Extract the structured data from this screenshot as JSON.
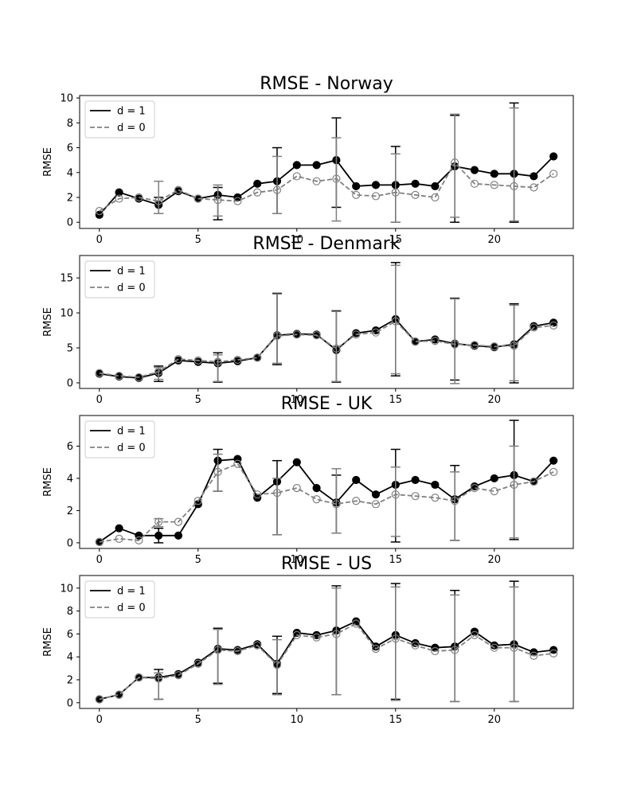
{
  "chart_data": [
    {
      "type": "line",
      "title": "RMSE - Norway",
      "xlabel": "",
      "ylabel": "RMSE",
      "xlim": [
        -1,
        24
      ],
      "ylim": [
        -0.5,
        10.2
      ],
      "xticks": [
        0,
        5,
        10,
        15,
        20
      ],
      "yticks": [
        0,
        2,
        4,
        6,
        8,
        10
      ],
      "legend": "top-left",
      "x": [
        0,
        1,
        2,
        3,
        4,
        5,
        6,
        7,
        8,
        9,
        10,
        11,
        12,
        13,
        14,
        15,
        16,
        17,
        18,
        19,
        20,
        21,
        22,
        23
      ],
      "series": [
        {
          "name": "d = 1",
          "color": "#000000",
          "linestyle": "solid",
          "marker": "filled-circle",
          "values": [
            0.6,
            2.4,
            1.9,
            1.4,
            2.5,
            1.9,
            2.2,
            2.0,
            3.1,
            3.3,
            4.6,
            4.6,
            5.0,
            2.9,
            3.0,
            3.0,
            3.1,
            2.9,
            4.5,
            4.2,
            3.9,
            3.9,
            3.7,
            5.3
          ],
          "errorbars": [
            {
              "x": 3,
              "low": 0.7,
              "high": 2.0
            },
            {
              "x": 6,
              "low": 0.2,
              "high": 2.8
            },
            {
              "x": 9,
              "low": 0.7,
              "high": 6.0
            },
            {
              "x": 12,
              "low": 1.2,
              "high": 8.4
            },
            {
              "x": 15,
              "low": 0.0,
              "high": 6.1
            },
            {
              "x": 18,
              "low": 0.0,
              "high": 8.6
            },
            {
              "x": 21,
              "low": 0.0,
              "high": 9.6
            }
          ]
        },
        {
          "name": "d = 0",
          "color": "#808080",
          "linestyle": "dashed",
          "marker": "open-circle",
          "values": [
            0.9,
            1.9,
            2.0,
            1.7,
            2.6,
            1.9,
            1.8,
            1.7,
            2.4,
            2.6,
            3.7,
            3.3,
            3.5,
            2.2,
            2.1,
            2.4,
            2.2,
            2.0,
            4.8,
            3.1,
            3.0,
            2.9,
            2.8,
            3.9
          ],
          "errorbars": [
            {
              "x": 3,
              "low": 0.7,
              "high": 3.3
            },
            {
              "x": 6,
              "low": 0.5,
              "high": 3.0
            },
            {
              "x": 9,
              "low": 0.7,
              "high": 5.3
            },
            {
              "x": 12,
              "low": 0.1,
              "high": 6.8
            },
            {
              "x": 15,
              "low": 0.0,
              "high": 5.5
            },
            {
              "x": 18,
              "low": 0.4,
              "high": 8.7
            },
            {
              "x": 21,
              "low": 0.1,
              "high": 9.2
            }
          ]
        }
      ]
    },
    {
      "type": "line",
      "title": "RMSE - Denmark",
      "xlabel": "",
      "ylabel": "RMSE",
      "xlim": [
        -1,
        24
      ],
      "ylim": [
        -0.8,
        18.2
      ],
      "xticks": [
        0,
        5,
        10,
        15,
        20
      ],
      "yticks": [
        0,
        5,
        10,
        15
      ],
      "legend": "top-left",
      "x": [
        0,
        1,
        2,
        3,
        4,
        5,
        6,
        7,
        8,
        9,
        10,
        11,
        12,
        13,
        14,
        15,
        16,
        17,
        18,
        19,
        20,
        21,
        22,
        23
      ],
      "series": [
        {
          "name": "d = 1",
          "color": "#000000",
          "linestyle": "solid",
          "marker": "filled-circle",
          "values": [
            1.3,
            0.9,
            0.7,
            1.4,
            3.2,
            3.0,
            2.8,
            3.1,
            3.6,
            6.8,
            7.0,
            6.9,
            4.7,
            7.1,
            7.5,
            9.1,
            5.9,
            6.2,
            5.6,
            5.3,
            5.1,
            5.5,
            8.1,
            8.6
          ],
          "errorbars": [
            {
              "x": 3,
              "low": 0.2,
              "high": 2.4
            },
            {
              "x": 6,
              "low": 0.1,
              "high": 4.3
            },
            {
              "x": 9,
              "low": 2.6,
              "high": 12.8
            },
            {
              "x": 12,
              "low": 0.1,
              "high": 10.3
            },
            {
              "x": 15,
              "low": 1.0,
              "high": 17.2
            },
            {
              "x": 18,
              "low": 0.4,
              "high": 12.1
            },
            {
              "x": 21,
              "low": 0.0,
              "high": 11.3
            }
          ]
        },
        {
          "name": "d = 0",
          "color": "#808080",
          "linestyle": "dashed",
          "marker": "open-circle",
          "values": [
            1.4,
            1.0,
            0.8,
            1.6,
            3.4,
            3.2,
            3.0,
            3.3,
            3.6,
            6.7,
            6.9,
            6.8,
            4.9,
            6.9,
            7.2,
            8.8,
            5.9,
            6.0,
            5.5,
            5.4,
            5.2,
            5.3,
            7.9,
            8.2
          ],
          "errorbars": [
            {
              "x": 3,
              "low": 0.5,
              "high": 2.2
            },
            {
              "x": 6,
              "low": 0.2,
              "high": 4.0
            },
            {
              "x": 9,
              "low": 2.8,
              "high": 12.7
            },
            {
              "x": 12,
              "low": 0.2,
              "high": 10.2
            },
            {
              "x": 15,
              "low": 1.3,
              "high": 16.8
            },
            {
              "x": 18,
              "low": -0.1,
              "high": 12.0
            },
            {
              "x": 21,
              "low": 0.3,
              "high": 11.1
            }
          ]
        }
      ]
    },
    {
      "type": "line",
      "title": "RMSE - UK",
      "xlabel": "",
      "ylabel": "RMSE",
      "xlim": [
        -1,
        24
      ],
      "ylim": [
        -0.35,
        7.9
      ],
      "xticks": [
        0,
        5,
        10,
        15,
        20
      ],
      "yticks": [
        0,
        2,
        4,
        6
      ],
      "legend": "top-left",
      "x": [
        0,
        1,
        2,
        3,
        4,
        5,
        6,
        7,
        8,
        9,
        10,
        11,
        12,
        13,
        14,
        15,
        16,
        17,
        18,
        19,
        20,
        21,
        22,
        23
      ],
      "series": [
        {
          "name": "d = 1",
          "color": "#000000",
          "linestyle": "solid",
          "marker": "filled-circle",
          "values": [
            0.05,
            0.9,
            0.45,
            0.45,
            0.45,
            2.4,
            5.1,
            5.2,
            2.8,
            3.8,
            5.0,
            3.4,
            2.5,
            3.9,
            3.0,
            3.6,
            3.9,
            3.6,
            2.7,
            3.5,
            4.0,
            4.2,
            3.8,
            5.1
          ],
          "errorbars": [
            {
              "x": 3,
              "low": 0.0,
              "high": 0.9
            },
            {
              "x": 6,
              "low": 3.2,
              "high": 5.8
            },
            {
              "x": 9,
              "low": 0.5,
              "high": 5.1
            },
            {
              "x": 12,
              "low": 0.6,
              "high": 4.2
            },
            {
              "x": 15,
              "low": 0.05,
              "high": 5.8
            },
            {
              "x": 18,
              "low": 0.15,
              "high": 4.8
            },
            {
              "x": 21,
              "low": 0.2,
              "high": 7.6
            }
          ]
        },
        {
          "name": "d = 0",
          "color": "#808080",
          "linestyle": "dashed",
          "marker": "open-circle",
          "values": [
            0.05,
            0.25,
            0.15,
            1.3,
            1.3,
            2.6,
            4.4,
            4.9,
            3.0,
            3.1,
            3.4,
            2.7,
            2.4,
            2.6,
            2.4,
            3.0,
            2.9,
            2.8,
            2.6,
            3.4,
            3.2,
            3.6,
            3.8,
            4.4
          ],
          "errorbars": [
            {
              "x": 3,
              "low": 1.0,
              "high": 1.5
            },
            {
              "x": 6,
              "low": 3.2,
              "high": 5.5
            },
            {
              "x": 9,
              "low": 0.5,
              "high": 4.0
            },
            {
              "x": 12,
              "low": 0.6,
              "high": 4.6
            },
            {
              "x": 15,
              "low": 0.4,
              "high": 4.7
            },
            {
              "x": 18,
              "low": 0.15,
              "high": 4.4
            },
            {
              "x": 21,
              "low": 0.3,
              "high": 6.0
            }
          ]
        }
      ]
    },
    {
      "type": "line",
      "title": "RMSE - US",
      "xlabel": "",
      "ylabel": "RMSE",
      "xlim": [
        -1,
        24
      ],
      "ylim": [
        -0.5,
        11.1
      ],
      "xticks": [
        0,
        5,
        10,
        15,
        20
      ],
      "yticks": [
        0,
        2,
        4,
        6,
        8,
        10
      ],
      "legend": "top-left",
      "x": [
        0,
        1,
        2,
        3,
        4,
        5,
        6,
        7,
        8,
        9,
        10,
        11,
        12,
        13,
        14,
        15,
        16,
        17,
        18,
        19,
        20,
        21,
        22,
        23
      ],
      "series": [
        {
          "name": "d = 1",
          "color": "#000000",
          "linestyle": "solid",
          "marker": "filled-circle",
          "values": [
            0.3,
            0.7,
            2.2,
            2.2,
            2.5,
            3.5,
            4.7,
            4.6,
            5.1,
            3.4,
            6.1,
            5.9,
            6.3,
            7.1,
            4.9,
            5.9,
            5.2,
            4.8,
            4.9,
            6.2,
            5.0,
            5.1,
            4.4,
            4.6
          ],
          "errorbars": [
            {
              "x": 3,
              "low": 0.3,
              "high": 2.9
            },
            {
              "x": 6,
              "low": 1.7,
              "high": 6.5
            },
            {
              "x": 9,
              "low": 0.8,
              "high": 5.8
            },
            {
              "x": 12,
              "low": 0.7,
              "high": 10.2
            },
            {
              "x": 15,
              "low": 0.3,
              "high": 10.4
            },
            {
              "x": 18,
              "low": 0.1,
              "high": 9.8
            },
            {
              "x": 21,
              "low": 0.1,
              "high": 10.6
            }
          ]
        },
        {
          "name": "d = 0",
          "color": "#808080",
          "linestyle": "dashed",
          "marker": "open-circle",
          "values": [
            0.3,
            0.7,
            2.2,
            2.1,
            2.4,
            3.4,
            4.6,
            4.5,
            5.0,
            3.3,
            5.9,
            5.7,
            6.0,
            6.9,
            4.7,
            5.6,
            5.0,
            4.5,
            4.6,
            5.9,
            4.8,
            4.8,
            4.1,
            4.3
          ],
          "errorbars": [
            {
              "x": 3,
              "low": 0.3,
              "high": 2.6
            },
            {
              "x": 6,
              "low": 1.6,
              "high": 6.4
            },
            {
              "x": 9,
              "low": 0.7,
              "high": 5.5
            },
            {
              "x": 12,
              "low": 0.7,
              "high": 10.0
            },
            {
              "x": 15,
              "low": 0.2,
              "high": 10.1
            },
            {
              "x": 18,
              "low": 0.1,
              "high": 9.4
            },
            {
              "x": 21,
              "low": 0.1,
              "high": 10.1
            }
          ]
        }
      ]
    }
  ]
}
